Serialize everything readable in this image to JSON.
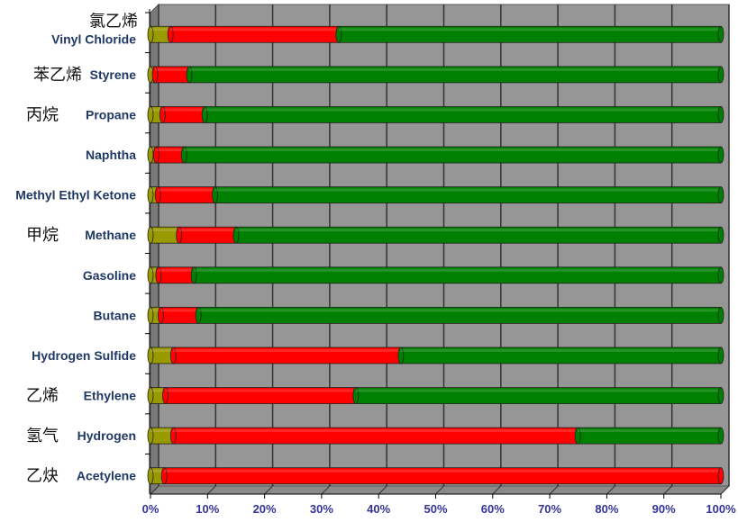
{
  "chart_data": {
    "type": "bar",
    "orientation": "horizontal",
    "stacked": "100%",
    "style": "3d-cylinder",
    "categories": [
      "Vinyl Chloride",
      "Styrene",
      "Propane",
      "Naphtha",
      "Methyl Ethyl Ketone",
      "Methane",
      "Gasoline",
      "Butane",
      "Hydrogen Sulfide",
      "Ethylene",
      "Hydrogen",
      "Acetylene"
    ],
    "category_annotations": [
      "氯乙烯",
      "苯乙烯",
      "丙烷",
      "",
      "",
      "甲烷",
      "",
      "",
      "",
      "乙烯",
      "氢气",
      "乙炔"
    ],
    "series": [
      {
        "color": "#999900",
        "values": [
          3.5,
          0.8,
          2.1,
          1.0,
          1.3,
          5.0,
          1.4,
          1.8,
          4.0,
          2.6,
          4.0,
          2.4
        ]
      },
      {
        "color": "#ff0000",
        "values": [
          29.5,
          6.0,
          7.4,
          4.9,
          10.0,
          10.0,
          6.2,
          6.6,
          39.9,
          33.4,
          70.9,
          97.6
        ]
      },
      {
        "color": "#008000",
        "values": [
          67.0,
          93.2,
          90.5,
          94.1,
          88.7,
          85.0,
          92.4,
          91.6,
          56.1,
          64.0,
          25.1,
          0
        ]
      }
    ],
    "xlim": [
      0,
      100
    ],
    "xticks": [
      "0%",
      "10%",
      "20%",
      "30%",
      "40%",
      "50%",
      "60%",
      "70%",
      "80%",
      "90%",
      "100%"
    ],
    "grid": true,
    "wall_color": "#969696"
  }
}
